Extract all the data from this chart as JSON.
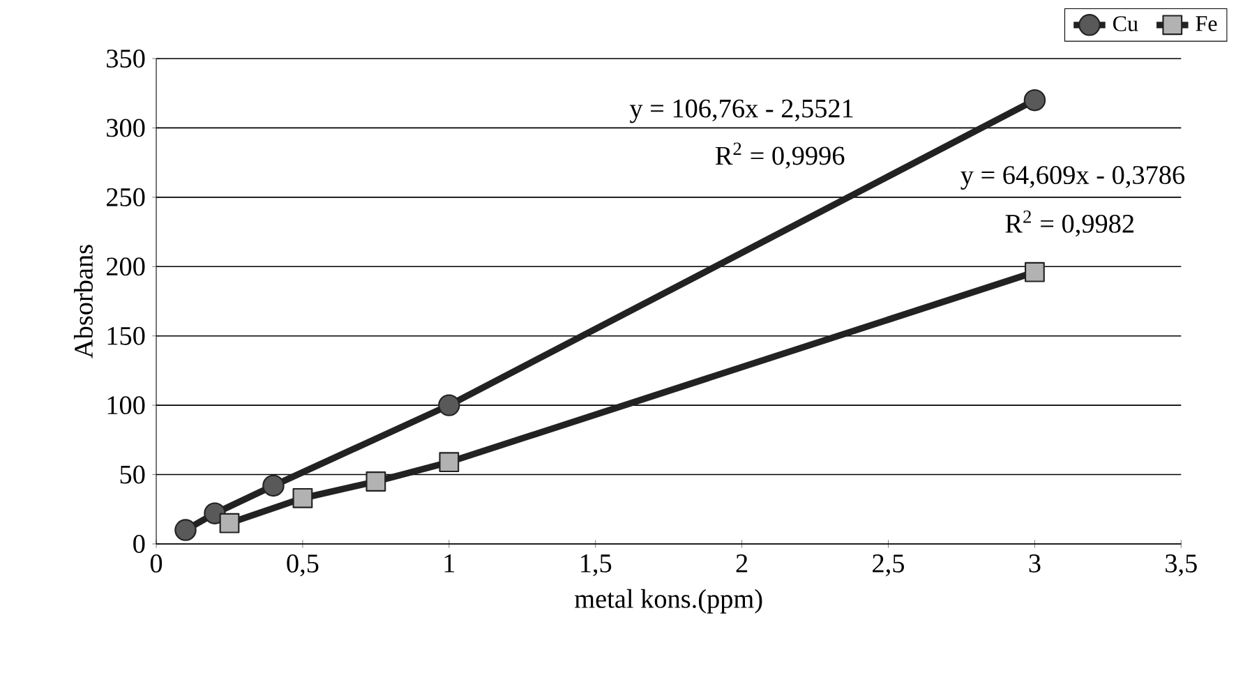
{
  "chart_data": {
    "type": "line",
    "xlabel": "metal kons.(ppm)",
    "ylabel": "Absorbans",
    "series": [
      {
        "name": "Cu",
        "color": "#222222",
        "marker": "circle",
        "x": [
          0.1,
          0.2,
          0.4,
          1,
          3
        ],
        "values": [
          10,
          22,
          42,
          100,
          320
        ]
      },
      {
        "name": "Fe",
        "color": "#222222",
        "marker": "square",
        "x": [
          0.25,
          0.5,
          0.75,
          1,
          3
        ],
        "values": [
          15,
          33,
          45,
          59,
          196
        ]
      }
    ],
    "xlim": [
      0,
      3.5
    ],
    "ylim": [
      0,
      350
    ],
    "xticks": [
      0,
      {
        "value": 0.5,
        "label": "0,5"
      },
      1,
      {
        "value": 1.5,
        "label": "1,5"
      },
      2,
      {
        "value": 2.5,
        "label": "2,5"
      },
      3,
      {
        "value": 3.5,
        "label": "3,5"
      }
    ],
    "yticks": [
      0,
      50,
      100,
      150,
      200,
      250,
      300,
      350
    ],
    "grid": "y",
    "legend": "top right",
    "line_style": "solid",
    "annotations": [
      "y = 106,76x - 2,5521",
      "R$^{2}$ = 0,9996",
      "y = 64,609x - 0,3786",
      "R$^{2}$ = 0,9982"
    ]
  }
}
